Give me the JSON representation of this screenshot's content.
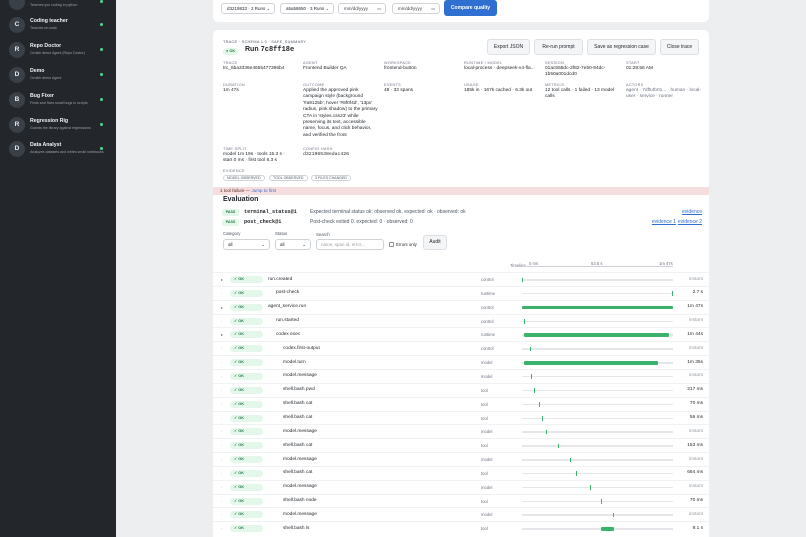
{
  "sidebar": {
    "agents": [
      {
        "letter": "",
        "name": "",
        "desc": "Teaches you coding in python"
      },
      {
        "letter": "C",
        "name": "Coding teacher",
        "desc": "Teaches on code"
      },
      {
        "letter": "R",
        "name": "Repo Doctor",
        "desc": "Ovuikh demo Agent (Repo Doctor)"
      },
      {
        "letter": "D",
        "name": "Demo",
        "desc": "Ovuikh demo Agent"
      },
      {
        "letter": "B",
        "name": "Bug Fixer",
        "desc": "Finds and fixes small bugs in scripts"
      },
      {
        "letter": "R",
        "name": "Regression Rig",
        "desc": "Guards the library against regressions"
      },
      {
        "letter": "D",
        "name": "Data Analyst",
        "desc": "Analyzes datasets and writes small notebooks"
      }
    ]
  },
  "compare": {
    "run_a": "d3219833 · 2 Runs",
    "run_b": "a5a58650 · 3 Runs",
    "date_from": "mm/dd/yyyy",
    "date_to": "mm/dd/yyyy",
    "compare_label": "Compare quality"
  },
  "trace": {
    "kicker": "TRACE · SCHEMA 1.0 · SAFE_SUMMARY",
    "status": "OK",
    "run_label": "Run",
    "run_id": "7c8ff18e",
    "buttons": {
      "export": "Export JSON",
      "rerun": "Re-run prompt",
      "save": "Save as regression case",
      "close": "Close trace"
    },
    "meta": [
      {
        "label": "TRACE",
        "value": "trc_6ba3336e4655477396b4"
      },
      {
        "label": "AGENT",
        "value": "Frontend Builder QA"
      },
      {
        "label": "WORKSPACE",
        "value": "frontend-button"
      },
      {
        "label": "RUNTIME / MODEL",
        "value": "local-process · deepseek-v4-fla..."
      },
      {
        "label": "SESSION",
        "value": "01ac558dc-2f82-7e50-94dc-1b50a001dcd0"
      },
      {
        "label": "START",
        "value": "01:28:56 AM"
      }
    ],
    "duration": {
      "label": "DURATION",
      "value": "1m 47s"
    },
    "outcome": {
      "label": "OUTCOME",
      "value": "Applied the approved pink campaign style (background '#a9125b', hover '#8f0f4d', '13px' radius, pink shadow) to the primary CTA in 'styles.css23' while preserving its text, accessible name, focus, and click behavior, and verified the front"
    },
    "events": {
      "label": "EVENTS",
      "value": "48 · 33 spans"
    },
    "usage": {
      "label": "USAGE",
      "value": "185k in · 167k cached · 6.3k out"
    },
    "metrics": {
      "label": "METRICS",
      "value": "12 tool calls · 1 failed · 13 model calls"
    },
    "actors": {
      "label": "ACTORS",
      "value": "agent · 7df54b01... · human · local-user · service · runner"
    },
    "time_split": {
      "label": "TIME SPLIT",
      "value": "model 1m 19s · tools 15.3 s · start 0 ms · first tool 8.3 s"
    },
    "config_hash": {
      "label": "CONFIG HASH",
      "value": "d32196538edac426"
    },
    "evidence": {
      "label": "EVIDENCE",
      "pills": [
        "MODEL OBSERVED",
        "TOOL OBSERVED",
        "3 FILES CHANGED"
      ]
    }
  },
  "banner": {
    "text": "1 tool failure —",
    "link": "Jump to first"
  },
  "evaluation": {
    "title": "Evaluation",
    "checks": [
      {
        "badge": "PASS",
        "name": "terminal_status@1",
        "detail": "Expected terminal status ok; observed ok.  expected: ok · observed: ok",
        "links": [
          "evidence"
        ]
      },
      {
        "badge": "PASS",
        "name": "post_check@1",
        "detail": "Post-check exited 0.  expected: 0 · observed: 0",
        "links": [
          "evidence 1",
          "evidence 2"
        ]
      }
    ]
  },
  "filters": {
    "category_label": "Category",
    "category_value": "all",
    "status_label": "Status",
    "status_value": "all",
    "search_label": "Search",
    "search_placeholder": "name, span id, error...",
    "errors_only": "Errors only",
    "audit": "Audit"
  },
  "timeline": {
    "label": "Timeline",
    "ticks": [
      "0 ms",
      "53.6 s",
      "1m 47s"
    ],
    "rows": [
      {
        "expand": "▸",
        "status": "OK",
        "name": "run.created",
        "indent": 0,
        "kind": "control",
        "duration": "instant",
        "bar": null,
        "mark": 0.0
      },
      {
        "expand": "·",
        "status": "OK",
        "name": "post-check",
        "indent": 1,
        "kind": "runtime",
        "duration": "2.7 s",
        "bar": null,
        "mark": 0.99
      },
      {
        "expand": "▸",
        "status": "OK",
        "name": "agent_service.run",
        "indent": 0,
        "kind": "control",
        "duration": "1m 47s",
        "bar": [
          0.0,
          1.0
        ],
        "mark": null
      },
      {
        "expand": "·",
        "status": "OK",
        "name": "run.started",
        "indent": 1,
        "kind": "control",
        "duration": "instant",
        "bar": null,
        "mark": 0.01
      },
      {
        "expand": "▸",
        "status": "OK",
        "name": "codex exec",
        "indent": 1,
        "kind": "runtime",
        "duration": "1m 44s",
        "bar": [
          0.01,
          0.97
        ],
        "mark": null
      },
      {
        "expand": "·",
        "status": "OK",
        "name": "codex.first-output",
        "indent": 2,
        "kind": "control",
        "duration": "instant",
        "bar": null,
        "mark": 0.05
      },
      {
        "expand": "·",
        "status": "OK",
        "name": "model.turn",
        "indent": 2,
        "kind": "model",
        "duration": "1m 35s",
        "bar": [
          0.01,
          0.9
        ],
        "mark": null
      },
      {
        "expand": "·",
        "status": "OK",
        "name": "model.message",
        "indent": 2,
        "kind": "model",
        "duration": "instant",
        "bar": null,
        "mark": 0.06
      },
      {
        "expand": "·",
        "status": "OK",
        "name": "shell.bash pwd",
        "indent": 2,
        "kind": "tool",
        "duration": "217 ms",
        "bar": null,
        "mark": 0.08
      },
      {
        "expand": "·",
        "status": "OK",
        "name": "shell.bash cat",
        "indent": 2,
        "kind": "tool",
        "duration": "70 ms",
        "bar": null,
        "mark": 0.11
      },
      {
        "expand": "·",
        "status": "OK",
        "name": "shell.bash cat",
        "indent": 2,
        "kind": "tool",
        "duration": "56 ms",
        "bar": null,
        "mark": 0.13
      },
      {
        "expand": "·",
        "status": "OK",
        "name": "model.message",
        "indent": 2,
        "kind": "model",
        "duration": "instant",
        "bar": null,
        "mark": 0.16
      },
      {
        "expand": "·",
        "status": "OK",
        "name": "shell.bash cat",
        "indent": 2,
        "kind": "tool",
        "duration": "153 ms",
        "bar": null,
        "mark": 0.24
      },
      {
        "expand": "·",
        "status": "OK",
        "name": "model.message",
        "indent": 2,
        "kind": "model",
        "duration": "instant",
        "bar": null,
        "mark": 0.32
      },
      {
        "expand": "·",
        "status": "OK",
        "name": "shell.bash cat",
        "indent": 2,
        "kind": "tool",
        "duration": "684 ms",
        "bar": null,
        "mark": 0.36
      },
      {
        "expand": "·",
        "status": "OK",
        "name": "model.message",
        "indent": 2,
        "kind": "model",
        "duration": "instant",
        "bar": null,
        "mark": 0.45
      },
      {
        "expand": "·",
        "status": "OK",
        "name": "shell.bash node",
        "indent": 2,
        "kind": "tool",
        "duration": "70 ms",
        "bar": null,
        "mark": 0.52
      },
      {
        "expand": "·",
        "status": "OK",
        "name": "model.message",
        "indent": 2,
        "kind": "model",
        "duration": "instant",
        "bar": null,
        "mark": 0.6
      },
      {
        "expand": "·",
        "status": "OK",
        "name": "shell.bash ls",
        "indent": 2,
        "kind": "tool",
        "duration": "9.1 s",
        "bar": [
          0.52,
          0.61
        ],
        "mark": null
      }
    ]
  },
  "colors": {
    "accent": "#2f6fd1",
    "ok": "#39b36b",
    "sidebar": "#23272c",
    "failure_banner": "#f7dede"
  }
}
